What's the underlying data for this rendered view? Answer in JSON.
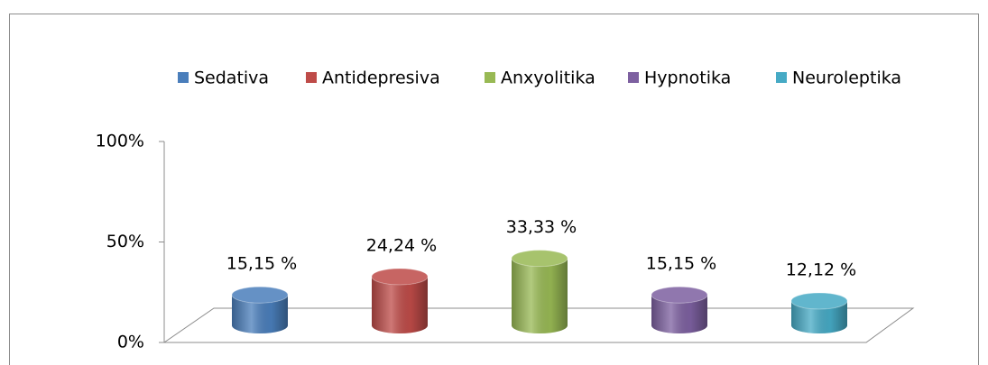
{
  "chart_data": {
    "type": "cylinder-bar",
    "categories": [
      null
    ],
    "series": [
      {
        "name": "Sedativa",
        "color": "#4a7ebb",
        "values": [
          15.15
        ],
        "value_labels": [
          "15,15 %"
        ]
      },
      {
        "name": "Antidepresiva",
        "color": "#be4b48",
        "values": [
          24.24
        ],
        "value_labels": [
          "24,24 %"
        ]
      },
      {
        "name": "Anxyolitika",
        "color": "#98b954",
        "values": [
          33.33
        ],
        "value_labels": [
          "33,33 %"
        ]
      },
      {
        "name": "Hypnotika",
        "color": "#7d60a0",
        "values": [
          15.15
        ],
        "value_labels": [
          "15,15 %"
        ]
      },
      {
        "name": "Neuroleptika",
        "color": "#46aac5",
        "values": [
          12.12
        ],
        "value_labels": [
          "12,12 %"
        ]
      }
    ],
    "ylim": [
      0,
      100
    ],
    "yticks": [
      {
        "value": 0,
        "label": "0%"
      },
      {
        "value": 50,
        "label": "50%"
      },
      {
        "value": 100,
        "label": "100%"
      }
    ],
    "legend": "top"
  }
}
